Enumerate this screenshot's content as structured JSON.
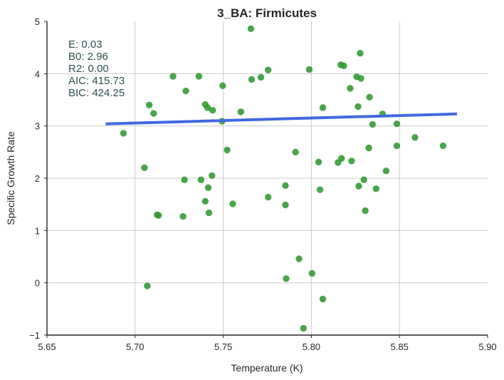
{
  "chart_data": {
    "type": "scatter",
    "title": "3_BA: Firmicutes",
    "xlabel": "Temperature (K)",
    "ylabel": "Specific Growth Rate",
    "xlim": [
      5.65,
      5.9
    ],
    "ylim": [
      -1,
      5
    ],
    "x_ticks": [
      "5.65",
      "5.70",
      "5.75",
      "5.80",
      "5.85",
      "5.90"
    ],
    "y_ticks": [
      "−1",
      "0",
      "1",
      "2",
      "3",
      "4",
      "5"
    ],
    "grid": true,
    "point_color": "#2e9a2e",
    "fit_color": "#4169e1",
    "annotation_color": "#2f4f4f",
    "annotations": [
      "E:  0.03",
      "B0:  2.96",
      "R2:  0.00",
      "AIC: 415.73",
      "BIC: 424.25"
    ],
    "fit_line": {
      "x": [
        5.6833,
        5.8826
      ],
      "y": [
        3.04,
        3.23
      ]
    },
    "points": [
      {
        "x": 5.6934,
        "y": 2.86
      },
      {
        "x": 5.7053,
        "y": 2.2
      },
      {
        "x": 5.7069,
        "y": -0.06
      },
      {
        "x": 5.708,
        "y": 3.4
      },
      {
        "x": 5.7105,
        "y": 3.24
      },
      {
        "x": 5.7125,
        "y": 1.3
      },
      {
        "x": 5.7133,
        "y": 1.29
      },
      {
        "x": 5.7215,
        "y": 3.95
      },
      {
        "x": 5.7272,
        "y": 1.27
      },
      {
        "x": 5.728,
        "y": 1.97
      },
      {
        "x": 5.7288,
        "y": 3.67
      },
      {
        "x": 5.7362,
        "y": 3.95
      },
      {
        "x": 5.7374,
        "y": 1.97
      },
      {
        "x": 5.7398,
        "y": 3.41
      },
      {
        "x": 5.7398,
        "y": 1.56
      },
      {
        "x": 5.7411,
        "y": 3.35
      },
      {
        "x": 5.7415,
        "y": 1.82
      },
      {
        "x": 5.7419,
        "y": 1.34
      },
      {
        "x": 5.7436,
        "y": 2.05
      },
      {
        "x": 5.744,
        "y": 3.3
      },
      {
        "x": 5.7493,
        "y": 3.09
      },
      {
        "x": 5.7497,
        "y": 3.77
      },
      {
        "x": 5.7522,
        "y": 2.54
      },
      {
        "x": 5.7554,
        "y": 1.51
      },
      {
        "x": 5.76,
        "y": 3.27
      },
      {
        "x": 5.7657,
        "y": 4.86
      },
      {
        "x": 5.7661,
        "y": 3.89
      },
      {
        "x": 5.7714,
        "y": 3.93
      },
      {
        "x": 5.7755,
        "y": 4.07
      },
      {
        "x": 5.7755,
        "y": 1.64
      },
      {
        "x": 5.7853,
        "y": 1.86
      },
      {
        "x": 5.7853,
        "y": 1.49
      },
      {
        "x": 5.7857,
        "y": 0.08
      },
      {
        "x": 5.791,
        "y": 2.5
      },
      {
        "x": 5.793,
        "y": 0.46
      },
      {
        "x": 5.7955,
        "y": -0.87
      },
      {
        "x": 5.7988,
        "y": 4.08
      },
      {
        "x": 5.8004,
        "y": 0.18
      },
      {
        "x": 5.8041,
        "y": 2.31
      },
      {
        "x": 5.8049,
        "y": 1.78
      },
      {
        "x": 5.8065,
        "y": 3.35
      },
      {
        "x": 5.8065,
        "y": -0.31
      },
      {
        "x": 5.8151,
        "y": 2.3
      },
      {
        "x": 5.8167,
        "y": 4.17
      },
      {
        "x": 5.8171,
        "y": 2.38
      },
      {
        "x": 5.8184,
        "y": 4.15
      },
      {
        "x": 5.822,
        "y": 3.72
      },
      {
        "x": 5.8228,
        "y": 2.33
      },
      {
        "x": 5.8257,
        "y": 3.94
      },
      {
        "x": 5.8265,
        "y": 3.37
      },
      {
        "x": 5.8269,
        "y": 1.85
      },
      {
        "x": 5.8277,
        "y": 4.39
      },
      {
        "x": 5.8281,
        "y": 3.91
      },
      {
        "x": 5.8298,
        "y": 1.97
      },
      {
        "x": 5.8306,
        "y": 1.38
      },
      {
        "x": 5.8326,
        "y": 2.58
      },
      {
        "x": 5.833,
        "y": 3.55
      },
      {
        "x": 5.8347,
        "y": 3.03
      },
      {
        "x": 5.8367,
        "y": 1.8
      },
      {
        "x": 5.8404,
        "y": 3.23
      },
      {
        "x": 5.8424,
        "y": 2.14
      },
      {
        "x": 5.8485,
        "y": 3.04
      },
      {
        "x": 5.8485,
        "y": 2.62
      },
      {
        "x": 5.8588,
        "y": 2.78
      },
      {
        "x": 5.8747,
        "y": 2.62
      }
    ]
  }
}
